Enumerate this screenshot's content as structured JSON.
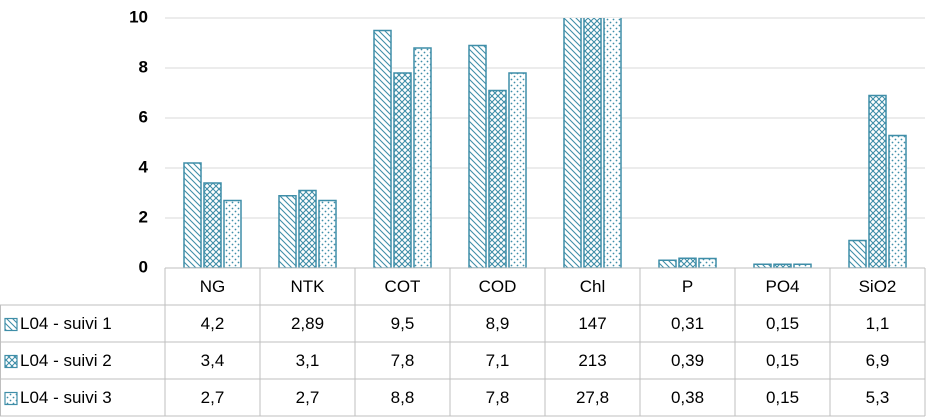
{
  "chart_data": {
    "type": "bar",
    "categories": [
      "NG",
      "NTK",
      "COT",
      "COD",
      "Chl",
      "P",
      "PO4",
      "SiO2"
    ],
    "series": [
      {
        "name": "L04 - suivi 1",
        "color": "#3f8ea8",
        "pattern": "diagonal",
        "values": [
          4.2,
          2.89,
          9.5,
          8.9,
          147,
          0.31,
          0.15,
          1.1
        ],
        "value_labels": [
          "4,2",
          "2,89",
          "9,5",
          "8,9",
          "147",
          "0,31",
          "0,15",
          "1,1"
        ]
      },
      {
        "name": "L04 - suivi 2",
        "color": "#3f8ea8",
        "pattern": "cross",
        "values": [
          3.4,
          3.1,
          7.8,
          7.1,
          213,
          0.39,
          0.15,
          6.9
        ],
        "value_labels": [
          "3,4",
          "3,1",
          "7,8",
          "7,1",
          "213",
          "0,39",
          "0,15",
          "6,9"
        ]
      },
      {
        "name": "L04 - suivi 3",
        "color": "#3f8ea8",
        "pattern": "dots",
        "values": [
          2.7,
          2.7,
          8.8,
          7.8,
          27.8,
          0.38,
          0.15,
          5.3
        ],
        "value_labels": [
          "2,7",
          "2,7",
          "8,8",
          "7,8",
          "27,8",
          "0,38",
          "0,15",
          "5,3"
        ]
      }
    ],
    "ylim": [
      0,
      10
    ],
    "yticks": [
      0,
      2,
      4,
      6,
      8,
      10
    ],
    "grid": true,
    "data_table": true
  }
}
